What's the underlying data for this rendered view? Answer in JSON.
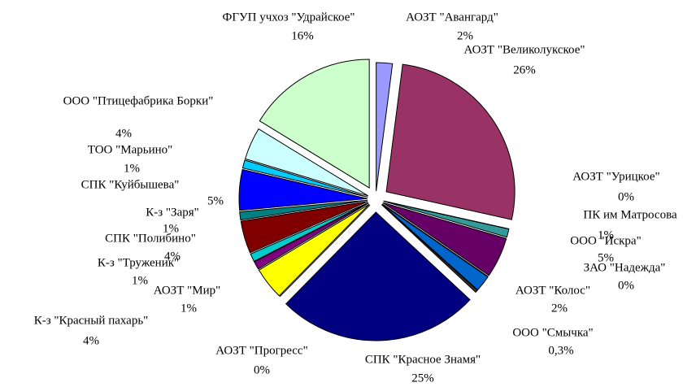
{
  "chart_data": {
    "type": "pie",
    "categories": [
      "АОЗТ \"Авангард\"",
      "АОЗТ \"Великолукское\"",
      "АОЗТ \"Урицкое\"",
      "ПК им Матросова",
      "ООО \"Искра\"",
      "ЗАО \"Надежда\"",
      "АОЗТ \"Колос\"",
      "ООО \"Смычка\"",
      "СПК \"Красное Знамя\"",
      "АОЗТ \"Прогресс\"",
      "К-з \"Красный пахарь\"",
      "АОЗТ \"Мир\"",
      "К-з \"Труженик\"",
      "СПК \"Полибино\"",
      "К-з \"Заря\"",
      "СПК \"Куйбышева\"",
      "ТОО \"Марьино\"",
      "ООО \"Птицефабрика Борки\"",
      "ФГУП учхоз \"Удрайское\""
    ],
    "values": [
      2,
      26,
      0,
      1,
      5,
      0,
      2,
      0.3,
      25,
      0,
      4,
      1,
      1,
      4,
      1,
      5,
      1,
      4,
      16
    ],
    "value_labels": [
      "2%",
      "26%",
      "0%",
      "1%",
      "5%",
      "0%",
      "2%",
      "0,3%",
      "25%",
      "0%",
      "4%",
      "1%",
      "1%",
      "4%",
      "1%",
      "5%",
      "1%",
      "4%",
      "16%"
    ],
    "colors": [
      "#9999ff",
      "#993366",
      "#ccffff",
      "#339999",
      "#660066",
      "#ff8080",
      "#0066cc",
      "#333333",
      "#000080",
      "#ff00ff",
      "#ffff00",
      "#800080",
      "#00cccc",
      "#800000",
      "#008080",
      "#0000ff",
      "#00ccff",
      "#ccffff",
      "#ccffcc"
    ]
  }
}
